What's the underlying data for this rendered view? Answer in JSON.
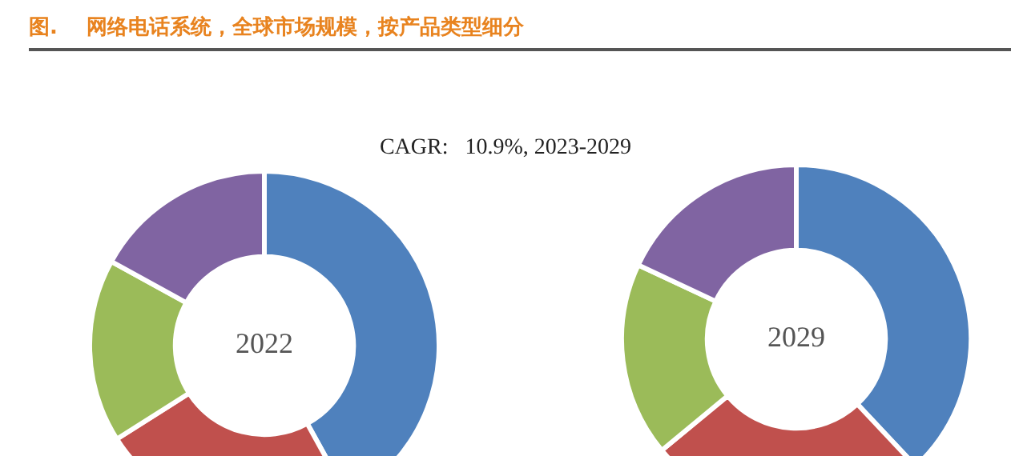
{
  "chart_data": [
    {
      "type": "donut",
      "title": "图.    网络电话系统，全球市场规模，按产品类型细分",
      "subtitle": "CAGR:   10.9%, 2023-2029",
      "categories": [
        null,
        null,
        null,
        null
      ],
      "values": [
        42,
        24,
        17,
        17
      ],
      "colors": [
        "#4f81bd",
        "#c0504d",
        "#9bbb59",
        "#8064a2"
      ],
      "annotations": [
        "2022"
      ]
    },
    {
      "type": "donut",
      "categories": [
        null,
        null,
        null,
        null
      ],
      "values": [
        38,
        26,
        18,
        18
      ],
      "colors": [
        "#4f81bd",
        "#c0504d",
        "#9bbb59",
        "#8064a2"
      ],
      "annotations": [
        "2029"
      ]
    }
  ]
}
